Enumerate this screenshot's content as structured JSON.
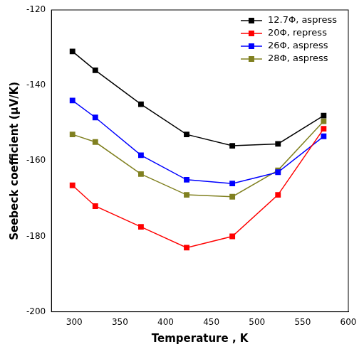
{
  "chart_data": {
    "type": "line",
    "x_label": "Temperature , K",
    "y_label": "Seebeck coefficient (μV/K)",
    "x": [
      298,
      323,
      373,
      423,
      473,
      523,
      573
    ],
    "xlim": [
      275,
      600
    ],
    "xticks": [
      300,
      350,
      400,
      450,
      500,
      550,
      600
    ],
    "ylim": [
      -200,
      -120
    ],
    "yticks": [
      -200,
      -180,
      -160,
      -140,
      -120
    ],
    "grid": false,
    "legend": "top-right",
    "marker": "square",
    "line_style": "solid",
    "series": [
      {
        "name": "12.7Φ, aspress",
        "color": "#000000",
        "values": [
          -131,
          -136,
          -145,
          -153,
          -156,
          -155.5,
          -148
        ]
      },
      {
        "name": "20Φ, repress",
        "color": "#ff0000",
        "values": [
          -166.5,
          -172,
          -177.5,
          -183,
          -180,
          -169,
          -151.5
        ]
      },
      {
        "name": "26Φ, aspress",
        "color": "#0000ff",
        "values": [
          -144,
          -148.5,
          -158.5,
          -165,
          -166,
          -163,
          -153.5
        ]
      },
      {
        "name": "28Φ, aspress",
        "color": "#808020",
        "values": [
          -153,
          -155,
          -163.5,
          -169,
          -169.5,
          -162.5,
          -149.5
        ]
      }
    ]
  }
}
